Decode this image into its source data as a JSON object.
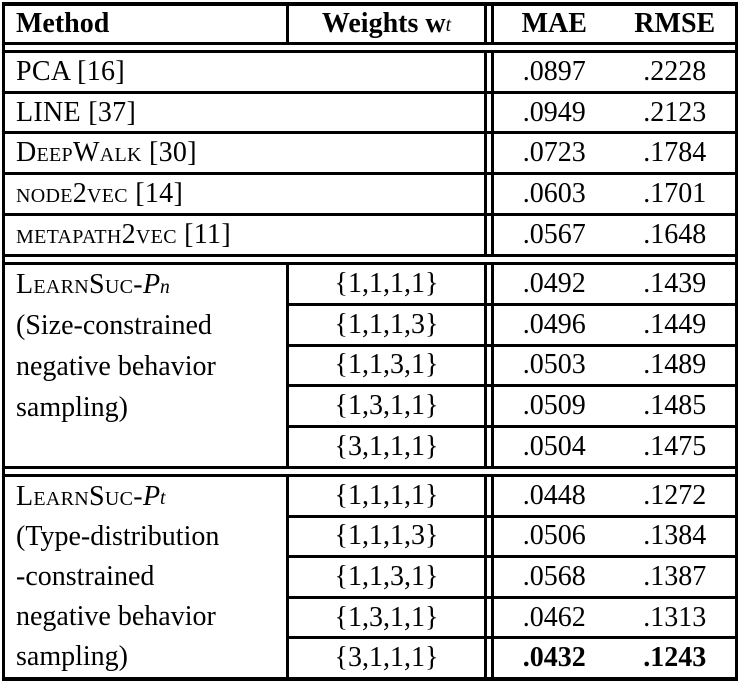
{
  "colors": {
    "ink": "#000000",
    "paper": "#ffffff"
  },
  "header": {
    "method": "Method",
    "weights_label": "Weights w",
    "weights_sub": "t",
    "mae": "MAE",
    "rmse": "RMSE"
  },
  "baselines": [
    {
      "label": "PCA [16]",
      "mae": ".0897",
      "rmse": ".2228"
    },
    {
      "label": "LINE [37]",
      "mae": ".0949",
      "rmse": ".2123"
    },
    {
      "label": "DeepWalk [30]",
      "mae": ".0723",
      "rmse": ".1784"
    },
    {
      "label": "node2vec [14]",
      "mae": ".0603",
      "rmse": ".1701"
    },
    {
      "label": "metapath2vec [11]",
      "mae": ".0567",
      "rmse": ".1648"
    }
  ],
  "groups": [
    {
      "name_sc": "LearnSuc-",
      "name_it": "P",
      "name_sub": "n",
      "desc": [
        "(Size-constrained",
        "negative behavior",
        "sampling)"
      ],
      "rows": [
        {
          "weights": "{1,1,1,1}",
          "mae": ".0492",
          "rmse": ".1439"
        },
        {
          "weights": "{1,1,1,3}",
          "mae": ".0496",
          "rmse": ".1449"
        },
        {
          "weights": "{1,1,3,1}",
          "mae": ".0503",
          "rmse": ".1489"
        },
        {
          "weights": "{1,3,1,1}",
          "mae": ".0509",
          "rmse": ".1485"
        },
        {
          "weights": "{3,1,1,1}",
          "mae": ".0504",
          "rmse": ".1475"
        }
      ]
    },
    {
      "name_sc": "LearnSuc-",
      "name_it": "P",
      "name_sub": "t",
      "desc": [
        "(Type-distribution",
        "-constrained",
        "negative behavior",
        "sampling)"
      ],
      "rows": [
        {
          "weights": "{1,1,1,1}",
          "mae": ".0448",
          "rmse": ".1272"
        },
        {
          "weights": "{1,1,1,3}",
          "mae": ".0506",
          "rmse": ".1384"
        },
        {
          "weights": "{1,1,3,1}",
          "mae": ".0568",
          "rmse": ".1387"
        },
        {
          "weights": "{1,3,1,1}",
          "mae": ".0462",
          "rmse": ".1313"
        },
        {
          "weights": "{3,1,1,1}",
          "mae": ".0432",
          "rmse": ".1243",
          "best": true
        }
      ]
    }
  ]
}
